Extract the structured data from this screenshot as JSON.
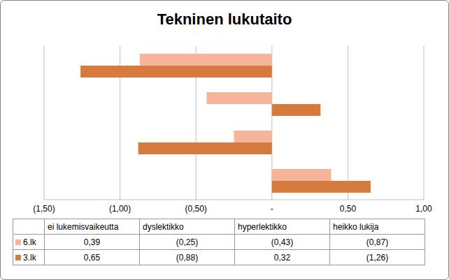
{
  "chart_data": {
    "type": "bar",
    "orientation": "horizontal",
    "title": "Tekninen lukutaito",
    "categories": [
      "ei lukemisvaikeutta",
      "dyslektikko",
      "hyperlektikko",
      "heikko lukija"
    ],
    "series": [
      {
        "name": "6.lk",
        "color": "#F6B49B",
        "values": [
          0.39,
          -0.25,
          -0.43,
          -0.87
        ],
        "value_labels": [
          "0,39",
          "(0,25)",
          "(0,43)",
          "(0,87)"
        ]
      },
      {
        "name": "3.lk",
        "color": "#D67B3E",
        "values": [
          0.65,
          -0.88,
          0.32,
          -1.26
        ],
        "value_labels": [
          "0,65",
          "(0,88)",
          "0,32",
          "(1,26)"
        ]
      }
    ],
    "xlim": [
      -1.5,
      1
    ],
    "xticks": [
      {
        "value": -1.5,
        "label": "(1,50)"
      },
      {
        "value": -1,
        "label": "(1,00)"
      },
      {
        "value": -0.5,
        "label": "(0,50)"
      },
      {
        "value": 0,
        "label": "-"
      },
      {
        "value": 0.5,
        "label": "0,50"
      },
      {
        "value": 1,
        "label": "1,00"
      }
    ],
    "grid": true
  }
}
